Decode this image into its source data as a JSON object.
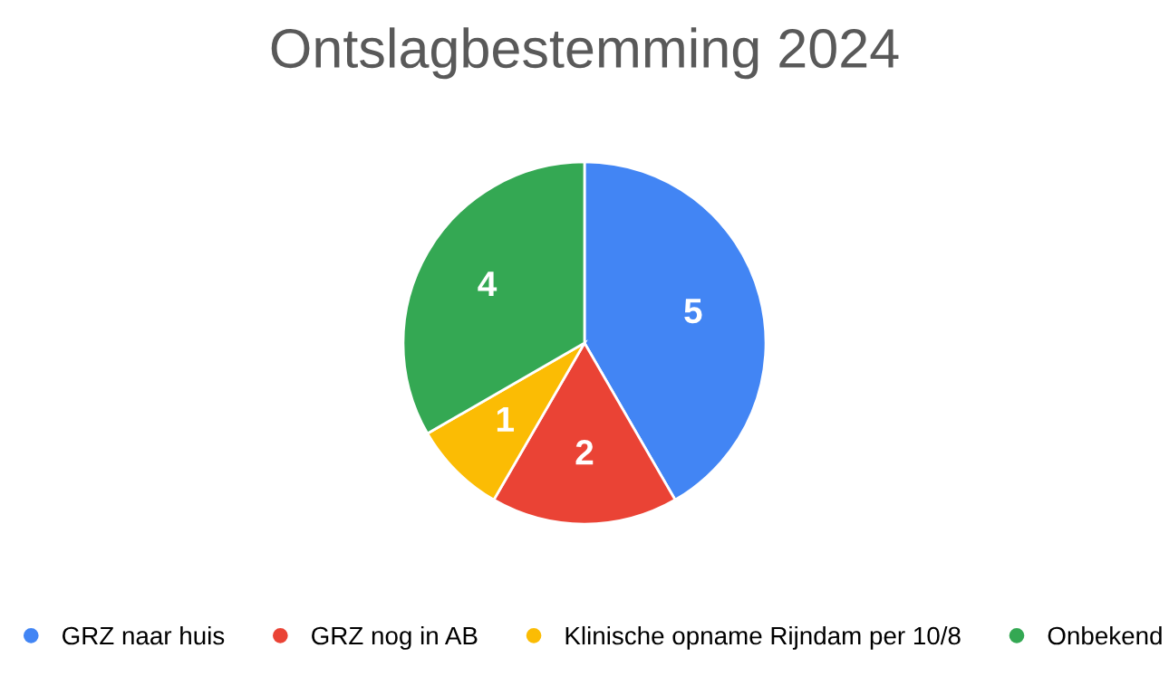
{
  "chart_data": {
    "type": "pie",
    "title": "Ontslagbestemming 2024",
    "categories": [
      "GRZ naar huis",
      "GRZ nog in AB",
      "Klinische opname Rijndam per 10/8",
      "Onbekend"
    ],
    "values": [
      5,
      2,
      1,
      4
    ],
    "colors": [
      "#4285f4",
      "#ea4335",
      "#fbbc04",
      "#34a853"
    ],
    "data_labels": true,
    "legend": "bottom"
  }
}
